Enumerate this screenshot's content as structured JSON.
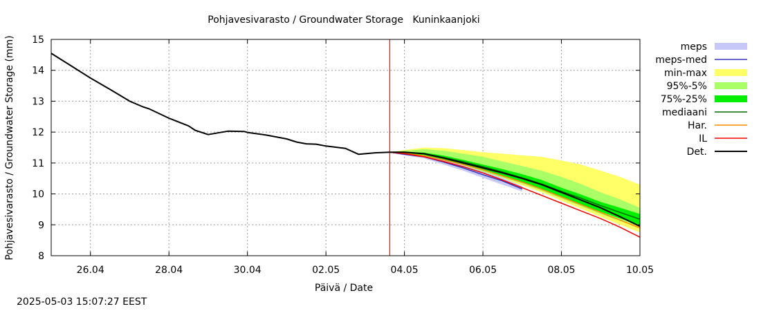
{
  "chart_data": {
    "type": "area",
    "title": "Pohjavesivarasto / Groundwater Storage   Kuninkaanjoki",
    "xlabel": "Päivä / Date",
    "ylabel": "Pohjavesivarasto / Groundwater Storage (mm)",
    "xlim": [
      "2025-04-25",
      "2025-05-10"
    ],
    "ylim": [
      8,
      15
    ],
    "yticks": [
      8,
      9,
      10,
      11,
      12,
      13,
      14,
      15
    ],
    "xticks": [
      {
        "date": "2025-04-26",
        "label": "26.04"
      },
      {
        "date": "2025-04-28",
        "label": "28.04"
      },
      {
        "date": "2025-04-30",
        "label": "30.04"
      },
      {
        "date": "2025-05-02",
        "label": "02.05"
      },
      {
        "date": "2025-05-04",
        "label": "04.05"
      },
      {
        "date": "2025-05-06",
        "label": "06.05"
      },
      {
        "date": "2025-05-08",
        "label": "08.05"
      },
      {
        "date": "2025-05-10",
        "label": "10.05"
      }
    ],
    "grid": true,
    "legend_position": "right",
    "forecast_start": "2025-05-03 15:00",
    "observed": {
      "name": "Det.",
      "x": [
        "2025-04-25 00:00",
        "2025-04-25 12:00",
        "2025-04-26 00:00",
        "2025-04-26 12:00",
        "2025-04-27 00:00",
        "2025-04-27 08:00",
        "2025-04-27 12:00",
        "2025-04-28 00:00",
        "2025-04-28 12:00",
        "2025-04-28 16:00",
        "2025-04-29 00:00",
        "2025-04-29 12:00",
        "2025-04-29 22:00",
        "2025-04-30 00:00",
        "2025-04-30 12:00",
        "2025-05-01 00:00",
        "2025-05-01 06:00",
        "2025-05-01 12:00",
        "2025-05-01 18:00",
        "2025-05-02 00:00",
        "2025-05-02 12:00",
        "2025-05-02 20:00",
        "2025-05-03 06:00",
        "2025-05-03 15:00"
      ],
      "y": [
        14.55,
        14.15,
        13.75,
        13.38,
        13.0,
        12.82,
        12.75,
        12.45,
        12.2,
        12.06,
        11.92,
        12.03,
        12.02,
        11.99,
        11.9,
        11.78,
        11.68,
        11.62,
        11.61,
        11.55,
        11.47,
        11.28,
        11.33,
        11.35
      ]
    },
    "forecast_x": [
      "2025-05-03 15:00",
      "2025-05-04 00:00",
      "2025-05-04 12:00",
      "2025-05-05 00:00",
      "2025-05-05 12:00",
      "2025-05-06 00:00",
      "2025-05-06 12:00",
      "2025-05-07 00:00",
      "2025-05-07 12:00",
      "2025-05-08 00:00",
      "2025-05-08 12:00",
      "2025-05-09 00:00",
      "2025-05-09 12:00",
      "2025-05-10 00:00"
    ],
    "bands": [
      {
        "name": "min-max",
        "color": "#ffff66",
        "upper": [
          11.35,
          11.42,
          11.5,
          11.48,
          11.42,
          11.35,
          11.3,
          11.25,
          11.2,
          11.08,
          10.95,
          10.75,
          10.55,
          10.3
        ],
        "lower": [
          11.35,
          11.3,
          11.2,
          11.05,
          10.88,
          10.68,
          10.48,
          10.28,
          10.05,
          9.78,
          9.52,
          9.26,
          9.0,
          8.75
        ]
      },
      {
        "name": "95%-5%",
        "color": "#aaff66",
        "upper": [
          11.35,
          11.4,
          11.45,
          11.4,
          11.3,
          11.2,
          11.05,
          10.9,
          10.75,
          10.55,
          10.32,
          10.05,
          9.82,
          9.55
        ],
        "lower": [
          11.35,
          11.31,
          11.22,
          11.08,
          10.92,
          10.72,
          10.53,
          10.33,
          10.1,
          9.85,
          9.6,
          9.35,
          9.12,
          8.95
        ]
      },
      {
        "name": "75%-25%",
        "color": "#00ee00",
        "upper": [
          11.35,
          11.36,
          11.34,
          11.24,
          11.1,
          10.95,
          10.8,
          10.64,
          10.45,
          10.2,
          9.98,
          9.74,
          9.55,
          9.35
        ],
        "lower": [
          11.35,
          11.32,
          11.25,
          11.12,
          10.96,
          10.78,
          10.58,
          10.38,
          10.15,
          9.9,
          9.66,
          9.42,
          9.2,
          9.0
        ]
      },
      {
        "name": "meps",
        "color": "#c8c8f8",
        "x": [
          "2025-05-03 15:00",
          "2025-05-04 00:00",
          "2025-05-04 12:00",
          "2025-05-05 00:00",
          "2025-05-05 12:00",
          "2025-05-06 00:00",
          "2025-05-06 12:00",
          "2025-05-07 00:00"
        ],
        "upper": [
          11.35,
          11.31,
          11.24,
          11.1,
          10.92,
          10.72,
          10.52,
          10.25
        ],
        "lower": [
          11.35,
          11.25,
          11.15,
          10.95,
          10.75,
          10.52,
          10.3,
          10.08
        ]
      }
    ],
    "series": [
      {
        "name": "meps-med",
        "color": "#3333bb",
        "x": [
          "2025-05-03 15:00",
          "2025-05-04 00:00",
          "2025-05-04 12:00",
          "2025-05-05 00:00",
          "2025-05-05 12:00",
          "2025-05-06 00:00",
          "2025-05-06 12:00",
          "2025-05-07 00:00"
        ],
        "y": [
          11.35,
          11.28,
          11.2,
          11.03,
          10.84,
          10.62,
          10.42,
          10.16
        ]
      },
      {
        "name": "mediaani",
        "color": "#006600",
        "y": [
          11.35,
          11.34,
          11.3,
          11.18,
          11.04,
          10.88,
          10.71,
          10.52,
          10.32,
          10.08,
          9.86,
          9.62,
          9.4,
          9.18
        ]
      },
      {
        "name": "Har.",
        "color": "#ff8800",
        "y": [
          11.35,
          11.31,
          11.24,
          11.1,
          10.95,
          10.78,
          10.58,
          10.38,
          10.15,
          9.9,
          9.65,
          9.4,
          9.15,
          8.9
        ]
      },
      {
        "name": "IL",
        "color": "#ee0000",
        "y": [
          11.35,
          11.3,
          11.2,
          11.05,
          10.88,
          10.68,
          10.45,
          10.2,
          9.95,
          9.7,
          9.45,
          9.2,
          8.92,
          8.6
        ]
      },
      {
        "name": "Det.",
        "color": "#000000",
        "y": [
          11.35,
          11.35,
          11.3,
          11.16,
          11.0,
          10.84,
          10.68,
          10.5,
          10.3,
          10.05,
          9.8,
          9.55,
          9.26,
          8.95
        ]
      }
    ],
    "legend": [
      {
        "name": "meps",
        "kind": "box",
        "color": "#c8c8f8"
      },
      {
        "name": "meps-med",
        "kind": "line",
        "color": "#3333bb"
      },
      {
        "name": "min-max",
        "kind": "box",
        "color": "#ffff66"
      },
      {
        "name": "95%-5%",
        "kind": "box",
        "color": "#aaff66"
      },
      {
        "name": "75%-25%",
        "kind": "box",
        "color": "#00ee00"
      },
      {
        "name": "mediaani",
        "kind": "line",
        "color": "#006600"
      },
      {
        "name": "Har.",
        "kind": "line",
        "color": "#ff8800"
      },
      {
        "name": "IL",
        "kind": "line",
        "color": "#ee0000"
      },
      {
        "name": "Det.",
        "kind": "line",
        "color": "#000000"
      }
    ],
    "forecast_line_color": "#aa0000"
  },
  "footer": {
    "timestamp": "2025-05-03 15:07:27 EEST"
  }
}
